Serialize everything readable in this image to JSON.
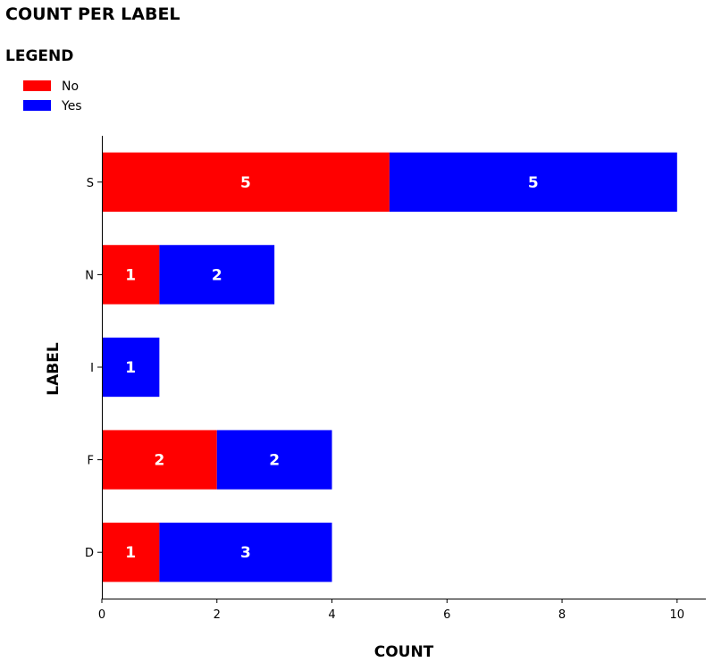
{
  "chart_data": {
    "type": "bar",
    "orientation": "horizontal",
    "stacked": true,
    "title": "COUNT PER LABEL",
    "xlabel": "COUNT",
    "ylabel": "LABEL",
    "categories": [
      "D",
      "F",
      "I",
      "N",
      "S"
    ],
    "series": [
      {
        "name": "No",
        "color": "#ff0000",
        "values": [
          1,
          2,
          0,
          1,
          5
        ]
      },
      {
        "name": "Yes",
        "color": "#0000ff",
        "values": [
          3,
          2,
          1,
          2,
          5
        ]
      }
    ],
    "xlim": [
      0,
      10.5
    ],
    "xticks": [
      0,
      2,
      4,
      6,
      8,
      10
    ],
    "grid": false,
    "legend": {
      "title": "LEGEND",
      "placement": "top-left",
      "entries": [
        "No",
        "Yes"
      ]
    }
  }
}
